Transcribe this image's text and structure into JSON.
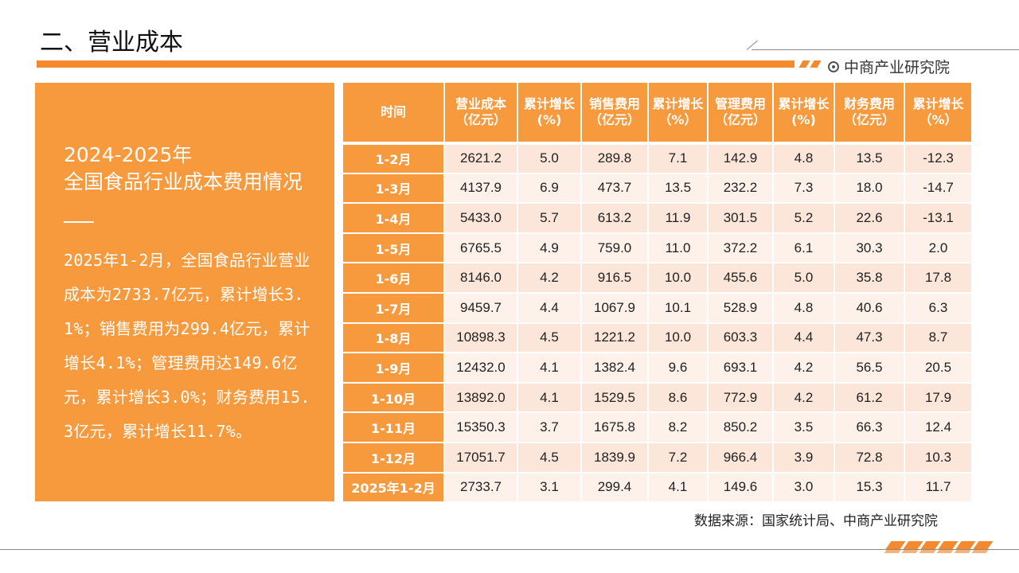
{
  "page": {
    "title": "二、营业成本",
    "brand": "中商产业研究院",
    "source": "数据来源：国家统计局、中商产业研究院"
  },
  "panel": {
    "heading_line1": "2024-2025年",
    "heading_line2": "全国食品行业成本费用情况",
    "body": "2025年1-2月，全国食品行业营业成本为2733.7亿元，累计增长3.1%；销售费用为299.4亿元，累计增长4.1%；管理费用达149.6亿元，累计增长3.0%；财务费用15.3亿元，累计增长11.7%。"
  },
  "table": {
    "headers": [
      "时间",
      "营业成本（亿元）",
      "累计增长(%)",
      "销售费用（亿元）",
      "累计增长（%）",
      "管理费用（亿元）",
      "累计增长(%)",
      "财务费用（亿元）",
      "累计增长（%）"
    ],
    "rows": [
      [
        "1-2月",
        "2621.2",
        "5.0",
        "289.8",
        "7.1",
        "142.9",
        "4.8",
        "13.5",
        "-12.3"
      ],
      [
        "1-3月",
        "4137.9",
        "6.9",
        "473.7",
        "13.5",
        "232.2",
        "7.3",
        "18.0",
        "-14.7"
      ],
      [
        "1-4月",
        "5433.0",
        "5.7",
        "613.2",
        "11.9",
        "301.5",
        "5.2",
        "22.6",
        "-13.1"
      ],
      [
        "1-5月",
        "6765.5",
        "4.9",
        "759.0",
        "11.0",
        "372.2",
        "6.1",
        "30.3",
        "2.0"
      ],
      [
        "1-6月",
        "8146.0",
        "4.2",
        "916.5",
        "10.0",
        "455.6",
        "5.0",
        "35.8",
        "17.8"
      ],
      [
        "1-7月",
        "9459.7",
        "4.4",
        "1067.9",
        "10.1",
        "528.9",
        "4.8",
        "40.6",
        "6.3"
      ],
      [
        "1-8月",
        "10898.3",
        "4.5",
        "1221.2",
        "10.0",
        "603.3",
        "4.4",
        "47.3",
        "8.7"
      ],
      [
        "1-9月",
        "12432.0",
        "4.1",
        "1382.4",
        "9.6",
        "693.1",
        "4.2",
        "56.5",
        "20.5"
      ],
      [
        "1-10月",
        "13892.0",
        "4.1",
        "1529.5",
        "8.6",
        "772.9",
        "4.2",
        "61.2",
        "17.9"
      ],
      [
        "1-11月",
        "15350.3",
        "3.7",
        "1675.8",
        "8.2",
        "850.2",
        "3.5",
        "66.3",
        "12.4"
      ],
      [
        "1-12月",
        "17051.7",
        "4.5",
        "1839.9",
        "7.2",
        "966.4",
        "3.9",
        "72.8",
        "10.3"
      ],
      [
        "2025年1-2月",
        "2733.7",
        "3.1",
        "299.4",
        "4.1",
        "149.6",
        "3.0",
        "15.3",
        "11.7"
      ]
    ]
  },
  "colors": {
    "accent": "#f79a3e",
    "row_odd": "#fbe6d9",
    "row_even": "#fdf1ea"
  }
}
